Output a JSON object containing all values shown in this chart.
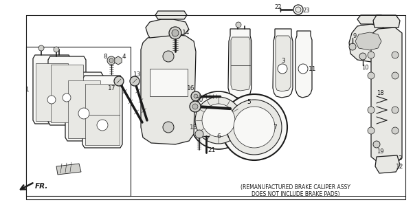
{
  "background_color": "#f0f0eb",
  "border_color": "#2a2a2a",
  "text_color": "#1a1a1a",
  "footnote_line1": "(REMANUFACTURED BRAKE CALIPER ASSY",
  "footnote_line2": "DOES NOT INCLUDE BRAKE PADS)",
  "fr_label": "FR.",
  "figsize": [
    6.01,
    3.2
  ],
  "dpi": 100,
  "img_b64": ""
}
